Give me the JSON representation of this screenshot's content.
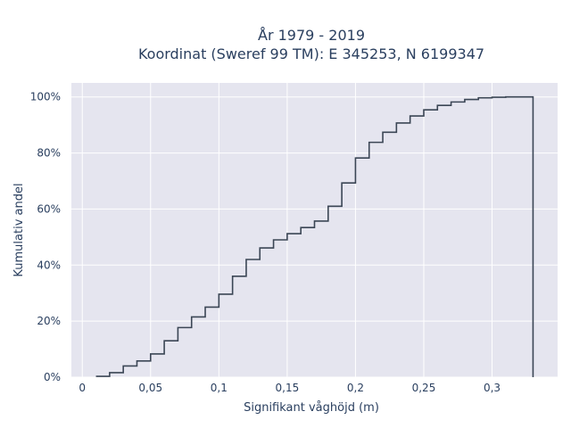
{
  "chart_data": {
    "type": "line",
    "line_shape": "step",
    "title": "År 1979 - 2019",
    "subtitle": "Koordinat (Sweref 99 TM): E 345253, N 6199347",
    "xlabel": "Signifikant våghöjd (m)",
    "ylabel": "Kumulativ andel",
    "xlim": [
      -0.008,
      0.348
    ],
    "ylim": [
      0,
      1.05
    ],
    "x_ticks": [
      {
        "value": 0,
        "label": "0"
      },
      {
        "value": 0.05,
        "label": "0,05"
      },
      {
        "value": 0.1,
        "label": "0,1"
      },
      {
        "value": 0.15,
        "label": "0,15"
      },
      {
        "value": 0.2,
        "label": "0,2"
      },
      {
        "value": 0.25,
        "label": "0,25"
      },
      {
        "value": 0.3,
        "label": "0,3"
      }
    ],
    "y_ticks": [
      {
        "value": 0,
        "label": "0%"
      },
      {
        "value": 0.2,
        "label": "20%"
      },
      {
        "value": 0.4,
        "label": "40%"
      },
      {
        "value": 0.6,
        "label": "60%"
      },
      {
        "value": 0.8,
        "label": "80%"
      },
      {
        "value": 1.0,
        "label": "100%"
      }
    ],
    "grid": true,
    "legend": "none",
    "colors": {
      "plot_background": "#e5e5ef",
      "grid": "#ffffff",
      "line": "#3b4655",
      "text": "#2a3f5f"
    },
    "series": [
      {
        "x": [
          0.01,
          0.02,
          0.03,
          0.04,
          0.05,
          0.06,
          0.07,
          0.08,
          0.09,
          0.1,
          0.11,
          0.12,
          0.13,
          0.14,
          0.15,
          0.16,
          0.17,
          0.18,
          0.19,
          0.2,
          0.21,
          0.22,
          0.23,
          0.24,
          0.25,
          0.26,
          0.27,
          0.28,
          0.29,
          0.3,
          0.31,
          0.32,
          0.33
        ],
        "y": [
          0.003,
          0.016,
          0.04,
          0.058,
          0.083,
          0.13,
          0.177,
          0.215,
          0.25,
          0.296,
          0.36,
          0.42,
          0.461,
          0.49,
          0.512,
          0.534,
          0.557,
          0.61,
          0.693,
          0.782,
          0.838,
          0.874,
          0.907,
          0.932,
          0.954,
          0.97,
          0.982,
          0.991,
          0.997,
          0.999,
          1.0,
          1.0,
          0.0
        ]
      }
    ]
  }
}
